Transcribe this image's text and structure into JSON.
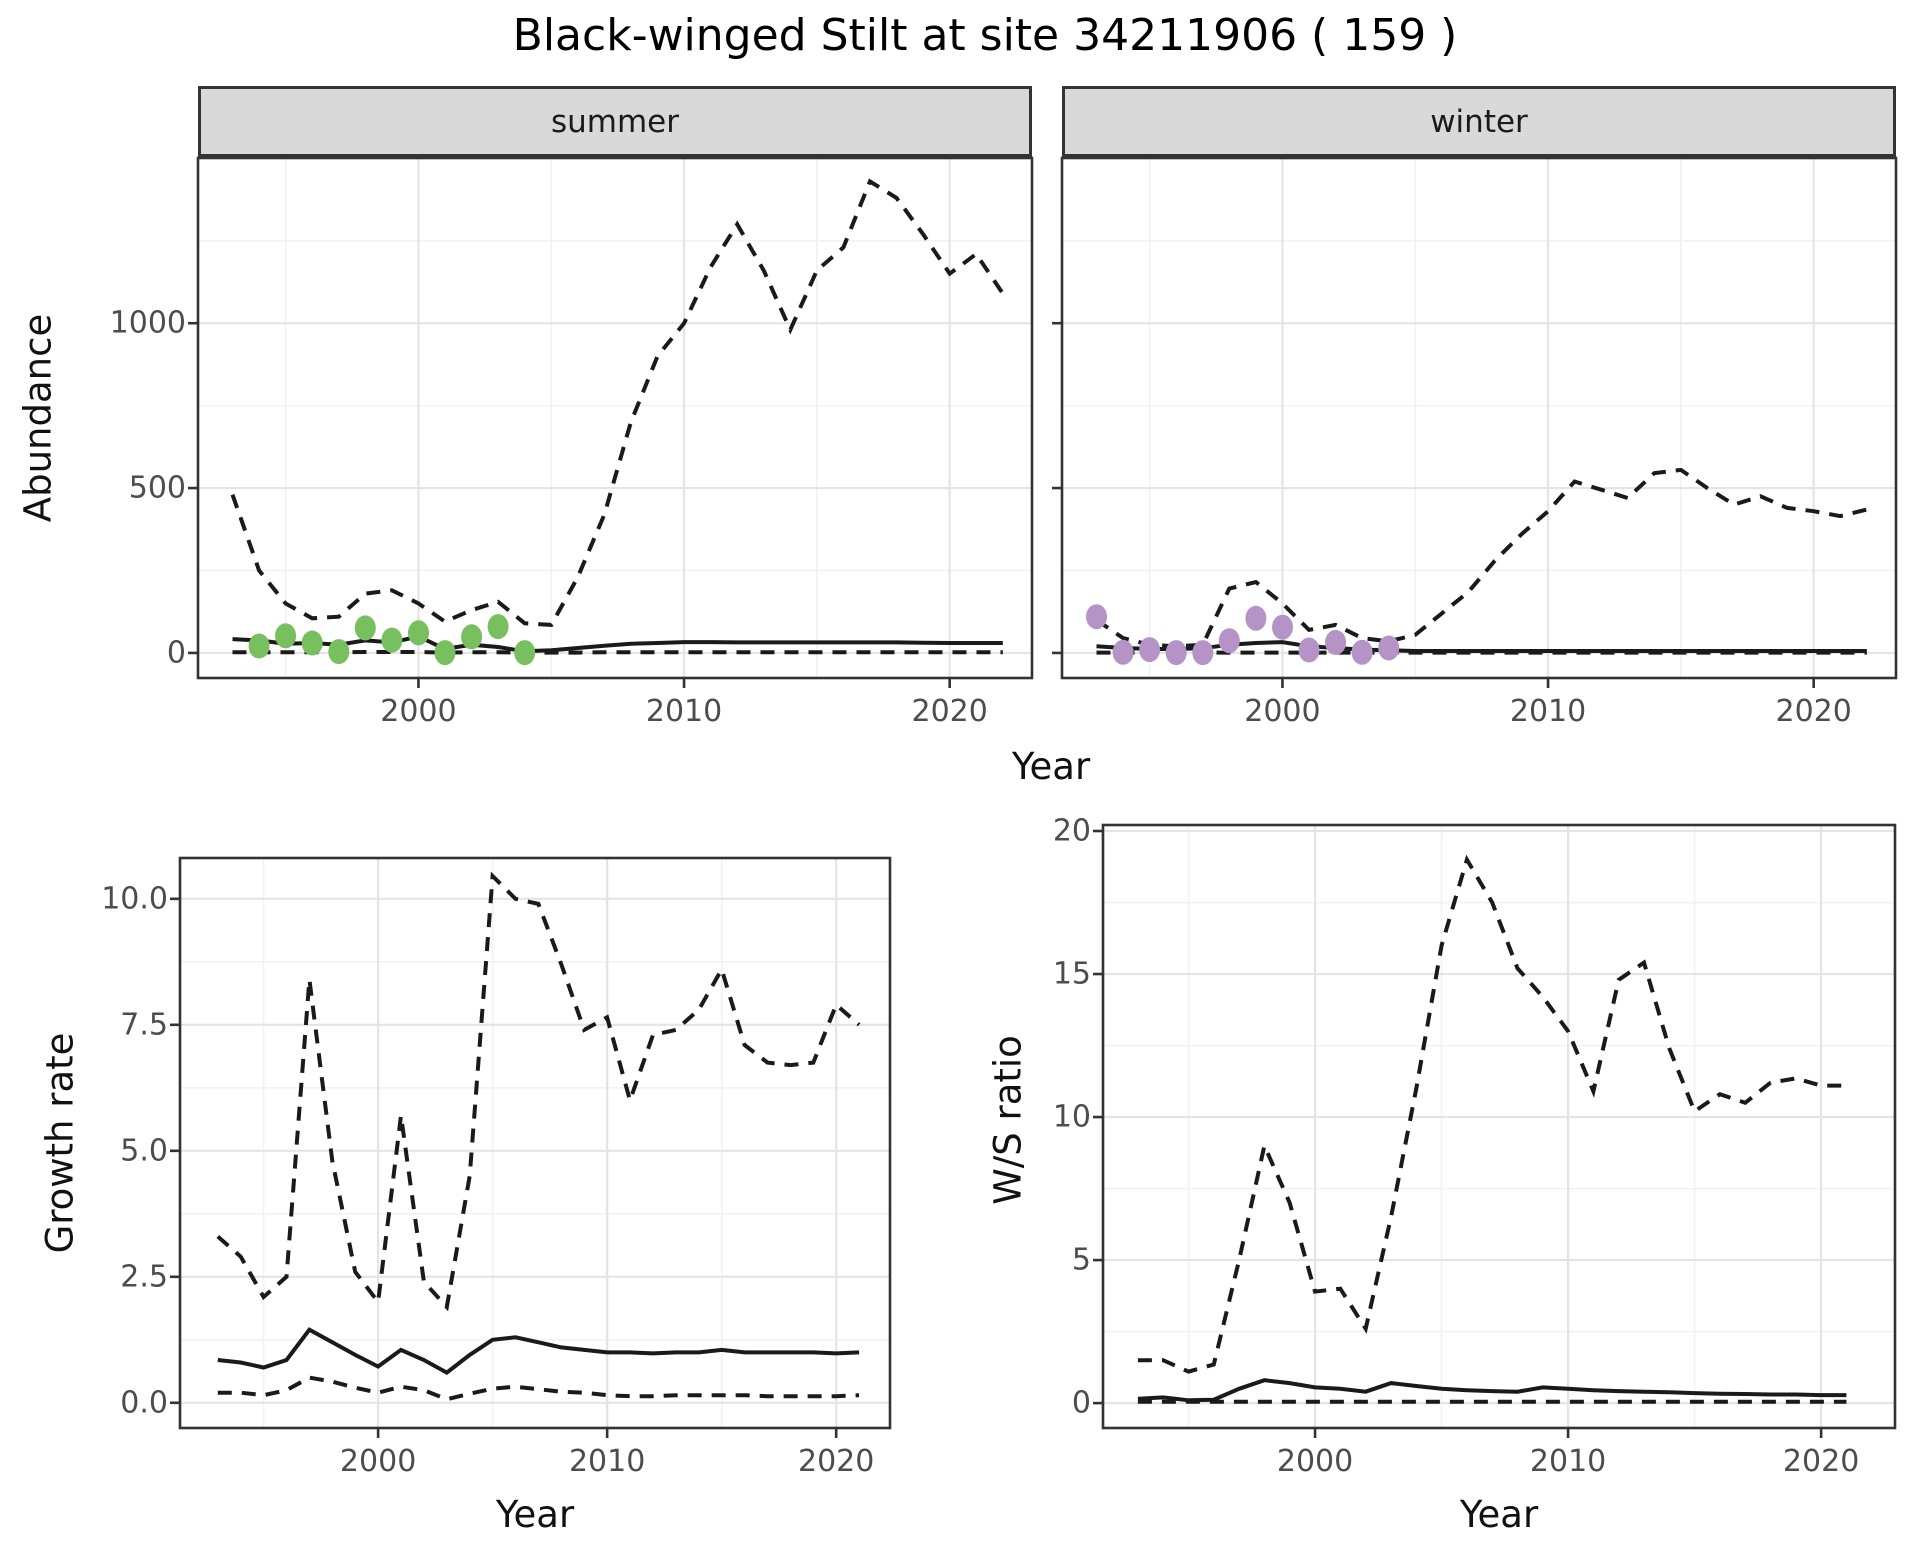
{
  "title": "Black-winged Stilt at site 34211906 ( 159 )",
  "facets": {
    "summer": "summer",
    "winter": "winter"
  },
  "axes": {
    "abundance_label": "Abundance",
    "year_label_top": "Year",
    "growth_label": "Growth rate",
    "year_label_growth": "Year",
    "ws_label": "W/S ratio",
    "year_label_ws": "Year"
  },
  "colors": {
    "summer_points": "#78bf5f",
    "winter_points": "#b593c7",
    "line": "#1a1a1a",
    "strip_bg": "#d9d9d9",
    "grid_major": "#e4e4e4",
    "grid_minor": "#f2f2f2",
    "border": "#333333",
    "tick_text": "#4d4d4d"
  },
  "chart_data": [
    {
      "id": "abundance-summer",
      "type": "line",
      "facet": "summer",
      "title": "Black-winged Stilt abundance, summer",
      "xlabel": "Year",
      "ylabel": "Abundance",
      "x": [
        1993,
        1994,
        1995,
        1996,
        1997,
        1998,
        1999,
        2000,
        2001,
        2002,
        2003,
        2004,
        2005,
        2006,
        2007,
        2008,
        2009,
        2010,
        2011,
        2012,
        2013,
        2014,
        2015,
        2016,
        2017,
        2018,
        2019,
        2020,
        2021,
        2022
      ],
      "series": [
        {
          "name": "upper_ci",
          "style": "dashed",
          "values": [
            480,
            250,
            150,
            105,
            110,
            180,
            190,
            150,
            95,
            130,
            155,
            90,
            85,
            230,
            420,
            700,
            900,
            1000,
            1170,
            1300,
            1160,
            980,
            1160,
            1230,
            1430,
            1380,
            1270,
            1150,
            1210,
            1090
          ]
        },
        {
          "name": "lower_ci",
          "style": "dashed",
          "values": [
            2,
            2,
            2,
            2,
            2,
            3,
            3,
            3,
            1,
            2,
            2,
            1,
            1,
            1,
            2,
            2,
            2,
            2,
            2,
            2,
            2,
            2,
            2,
            2,
            2,
            2,
            2,
            2,
            2,
            2
          ]
        },
        {
          "name": "median",
          "style": "solid",
          "values": [
            42,
            38,
            28,
            30,
            25,
            38,
            32,
            50,
            12,
            25,
            18,
            5,
            8,
            15,
            22,
            28,
            30,
            33,
            33,
            32,
            32,
            32,
            32,
            32,
            32,
            32,
            31,
            30,
            30,
            30
          ]
        }
      ],
      "points": {
        "name": "observed-counts",
        "color": "summer_points",
        "x": [
          1994,
          1995,
          1996,
          1997,
          1998,
          1999,
          2000,
          2001,
          2002,
          2003,
          2004
        ],
        "y": [
          21,
          52,
          30,
          4,
          76,
          39,
          61,
          1,
          49,
          80,
          1
        ]
      },
      "ticks": {
        "x": {
          "values": [
            2000,
            2010,
            2020
          ],
          "labels": [
            "2000",
            "2010",
            "2020"
          ]
        },
        "y": {
          "values": [
            0,
            500,
            1000
          ],
          "labels": [
            "0",
            "500",
            "1000"
          ]
        }
      },
      "grid": {
        "x_minor": [
          1995,
          2005,
          2015
        ],
        "y_minor": [
          250,
          750,
          1250
        ]
      },
      "xlim": [
        1991.7,
        2023.1
      ],
      "ylim": [
        -76,
        1501
      ],
      "legend": "none"
    },
    {
      "id": "abundance-winter",
      "type": "line",
      "facet": "winter",
      "title": "Black-winged Stilt abundance, winter",
      "xlabel": "Year",
      "ylabel": "Abundance",
      "x": [
        1993,
        1994,
        1995,
        1996,
        1997,
        1998,
        1999,
        2000,
        2001,
        2002,
        2003,
        2004,
        2005,
        2006,
        2007,
        2008,
        2009,
        2010,
        2011,
        2012,
        2013,
        2014,
        2015,
        2016,
        2017,
        2018,
        2019,
        2020,
        2021,
        2022
      ],
      "series": [
        {
          "name": "upper_ci",
          "style": "dashed",
          "values": [
            100,
            45,
            25,
            20,
            25,
            195,
            215,
            150,
            70,
            85,
            45,
            35,
            55,
            120,
            185,
            280,
            360,
            430,
            520,
            495,
            470,
            545,
            555,
            500,
            450,
            475,
            440,
            430,
            415,
            435
          ]
        },
        {
          "name": "lower_ci",
          "style": "dashed",
          "values": [
            1,
            1,
            1,
            1,
            1,
            1,
            1,
            1,
            1,
            1,
            1,
            1,
            1,
            1,
            1,
            1,
            1,
            1,
            1,
            1,
            1,
            1,
            1,
            1,
            1,
            1,
            1,
            1,
            1,
            1
          ]
        },
        {
          "name": "median",
          "style": "solid",
          "values": [
            20,
            15,
            12,
            12,
            14,
            25,
            30,
            33,
            20,
            15,
            10,
            8,
            6,
            6,
            6,
            6,
            6,
            6,
            6,
            6,
            6,
            6,
            6,
            6,
            6,
            6,
            6,
            6,
            6,
            6
          ]
        }
      ],
      "points": {
        "name": "observed-counts",
        "color": "winter_points",
        "x": [
          1993,
          1994,
          1995,
          1996,
          1997,
          1998,
          1999,
          2000,
          2001,
          2002,
          2003,
          2004
        ],
        "y": [
          110,
          2,
          10,
          1,
          1,
          37,
          105,
          78,
          9,
          32,
          2,
          15
        ]
      },
      "ticks": {
        "x": {
          "values": [
            2000,
            2010,
            2020
          ],
          "labels": [
            "2000",
            "2010",
            "2020"
          ]
        },
        "y": {
          "values": [
            0,
            500,
            1000
          ],
          "labels": [
            "0",
            "500",
            "1000"
          ],
          "hidden": true
        }
      },
      "grid": {
        "x_minor": [
          1995,
          2005,
          2015
        ],
        "y_minor": [
          250,
          750,
          1250
        ]
      },
      "xlim": [
        1991.7,
        2023.1
      ],
      "ylim": [
        -76,
        1501
      ],
      "legend": "none"
    },
    {
      "id": "growth-rate",
      "type": "line",
      "title": "Growth rate",
      "xlabel": "Year",
      "ylabel": "Growth rate",
      "x": [
        1993,
        1994,
        1995,
        1996,
        1997,
        1998,
        1999,
        2000,
        2001,
        2002,
        2003,
        2004,
        2005,
        2006,
        2007,
        2008,
        2009,
        2010,
        2011,
        2012,
        2013,
        2014,
        2015,
        2016,
        2017,
        2018,
        2019,
        2020,
        2021
      ],
      "series": [
        {
          "name": "upper_ci",
          "style": "dashed",
          "values": [
            3.3,
            2.9,
            2.1,
            2.5,
            8.4,
            4.8,
            2.6,
            2.0,
            5.7,
            2.4,
            1.9,
            4.5,
            10.45,
            10.0,
            9.9,
            8.7,
            7.4,
            7.65,
            6.0,
            7.3,
            7.4,
            7.8,
            8.6,
            7.1,
            6.75,
            6.7,
            6.75,
            7.9,
            7.5
          ]
        },
        {
          "name": "lower_ci",
          "style": "dashed",
          "values": [
            0.2,
            0.2,
            0.15,
            0.25,
            0.5,
            0.42,
            0.3,
            0.2,
            0.32,
            0.25,
            0.07,
            0.18,
            0.28,
            0.32,
            0.27,
            0.22,
            0.2,
            0.15,
            0.13,
            0.13,
            0.15,
            0.15,
            0.15,
            0.15,
            0.13,
            0.13,
            0.13,
            0.13,
            0.15
          ]
        },
        {
          "name": "median",
          "style": "solid",
          "values": [
            0.85,
            0.8,
            0.7,
            0.85,
            1.45,
            1.2,
            0.95,
            0.72,
            1.05,
            0.85,
            0.6,
            0.95,
            1.25,
            1.3,
            1.2,
            1.1,
            1.05,
            1.0,
            1.0,
            0.98,
            1.0,
            1.0,
            1.05,
            1.0,
            1.0,
            1.0,
            1.0,
            0.98,
            1.0
          ]
        }
      ],
      "ticks": {
        "x": {
          "values": [
            2000,
            2010,
            2020
          ],
          "labels": [
            "2000",
            "2010",
            "2020"
          ]
        },
        "y": {
          "values": [
            0,
            2.5,
            5,
            7.5,
            10
          ],
          "labels": [
            "0.0",
            "2.5",
            "5.0",
            "7.5",
            "10.0"
          ]
        }
      },
      "grid": {
        "x_minor": [
          1995,
          2005,
          2015
        ],
        "y_minor": [
          1.25,
          3.75,
          6.25,
          8.75
        ]
      },
      "xlim": [
        1991.35,
        2022.35
      ],
      "ylim": [
        -0.5,
        10.81
      ],
      "legend": "none"
    },
    {
      "id": "ws-ratio",
      "type": "line",
      "title": "Winter/Summer ratio",
      "xlabel": "Year",
      "ylabel": "W/S ratio",
      "x": [
        1993,
        1994,
        1995,
        1996,
        1997,
        1998,
        1999,
        2000,
        2001,
        2002,
        2003,
        2004,
        2005,
        2006,
        2007,
        2008,
        2009,
        2010,
        2011,
        2012,
        2013,
        2014,
        2015,
        2016,
        2017,
        2018,
        2019,
        2020,
        2021
      ],
      "series": [
        {
          "name": "upper_ci",
          "style": "dashed",
          "values": [
            1.5,
            1.5,
            1.1,
            1.35,
            5.0,
            9.0,
            7.0,
            3.9,
            4.0,
            2.6,
            6.5,
            11.0,
            16.0,
            19.0,
            17.5,
            15.2,
            14.2,
            13.0,
            10.9,
            14.8,
            15.4,
            12.4,
            10.2,
            10.8,
            10.5,
            11.2,
            11.35,
            11.1,
            11.1
          ]
        },
        {
          "name": "lower_ci",
          "style": "dashed",
          "values": [
            0.05,
            0.05,
            0.05,
            0.05,
            0.05,
            0.05,
            0.05,
            0.05,
            0.05,
            0.05,
            0.05,
            0.05,
            0.05,
            0.05,
            0.05,
            0.05,
            0.05,
            0.05,
            0.05,
            0.05,
            0.05,
            0.05,
            0.05,
            0.05,
            0.05,
            0.05,
            0.05,
            0.05,
            0.05
          ]
        },
        {
          "name": "median",
          "style": "solid",
          "values": [
            0.15,
            0.2,
            0.1,
            0.12,
            0.5,
            0.8,
            0.7,
            0.55,
            0.5,
            0.4,
            0.7,
            0.6,
            0.5,
            0.45,
            0.42,
            0.4,
            0.55,
            0.5,
            0.45,
            0.42,
            0.4,
            0.38,
            0.35,
            0.33,
            0.32,
            0.3,
            0.3,
            0.28,
            0.28
          ]
        }
      ],
      "ticks": {
        "x": {
          "values": [
            2000,
            2010,
            2020
          ],
          "labels": [
            "2000",
            "2010",
            "2020"
          ]
        },
        "y": {
          "values": [
            0,
            5,
            10,
            15,
            20
          ],
          "labels": [
            "0",
            "5",
            "10",
            "15",
            "20"
          ]
        }
      },
      "grid": {
        "x_minor": [
          1995,
          2005,
          2015
        ],
        "y_minor": [
          2.5,
          7.5,
          12.5,
          17.5
        ]
      },
      "xlim": [
        1991.62,
        2022.92
      ],
      "ylim": [
        -0.87,
        20.21
      ],
      "legend": "none"
    }
  ]
}
